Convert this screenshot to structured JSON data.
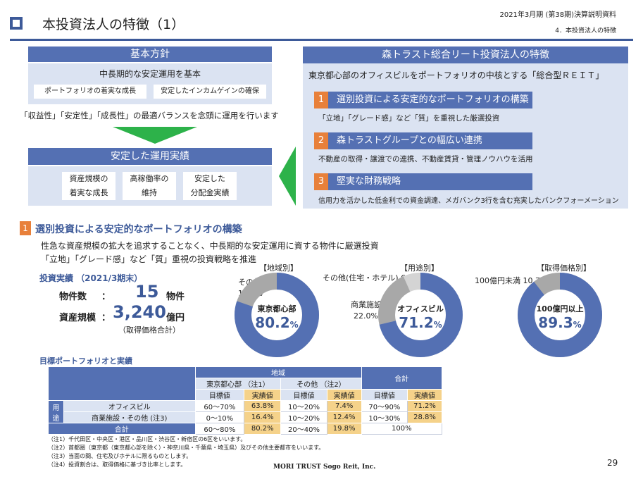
{
  "header": {
    "title": "本投資法人の特徴（1）",
    "fiscal": "2021年3月期 (第38期)決算説明資料",
    "section": "4．本投資法人の特徴"
  },
  "left_panel": {
    "head": "基本方針",
    "subtitle": "中長期的な安定運用を基本",
    "box1": "ポートフォリオの着実な成長",
    "box2": "安定したインカムゲインの確保",
    "balance_text": "「収益性」「安定性」「成長性」の最適バランスを念頭に運用を行います",
    "results_head": "安定した運用実績",
    "result1_line1": "資産規模の",
    "result1_line2": "着実な成長",
    "result2_line1": "高稼働率の",
    "result2_line2": "維持",
    "result3_line1": "安定した",
    "result3_line2": "分配金実績"
  },
  "right_panel": {
    "head": "森トラスト総合リート投資法人の特徴",
    "lead": "東京都心部のオフィスビルをポートフォリオの中核とする「総合型ＲＥＩＴ」",
    "features": [
      {
        "num": "1",
        "title": "選別投資による安定的なポートフォリオの構築",
        "desc": "「立地」「グレード感」など「質」を重視した厳選投資"
      },
      {
        "num": "2",
        "title": "森トラストグループとの幅広い連携",
        "desc": "不動産の取得・譲渡での連携、不動産賃貸・管理ノウハウを活用"
      },
      {
        "num": "3",
        "title": "堅実な財務戦略",
        "desc": "信用力を活かした低金利での資金調達、メガバンク3行を含む充実したバンクフォーメーション"
      }
    ]
  },
  "section1": {
    "num": "1",
    "heading": "選別投資による安定的なポートフォリオの構築",
    "line1": "性急な資産規模の拡大を追求することなく、中長期的な安定運用に資する物件に厳選投資",
    "line2": "「立地」「グレード感」など「質」重視の投資戦略を推進",
    "results_title": "投資実績 （2021/3期末）",
    "count_label": "物件数",
    "colon": "：",
    "count_value": "15",
    "count_unit": "物件",
    "scale_label": "資産規模",
    "scale_value": "3,240",
    "scale_unit": "億円",
    "scale_note": "（取得価格合計）"
  },
  "donuts": {
    "region": {
      "title": "【地域別】",
      "main_label": "東京都心部",
      "main_value": "80.2",
      "other_label": "その他",
      "other_value": "19.8%",
      "percent_sign": "%",
      "fraction": 0.802
    },
    "use": {
      "title": "【用途別】",
      "main_label": "オフィスビル",
      "main_value": "71.2",
      "other1_label": "その他(住宅・ホテル) 6.8%",
      "other2_label": "商業施設",
      "other2_value": "22.0%",
      "percent_sign": "%",
      "fraction_main": 0.712,
      "fraction_commercial": 0.22,
      "fraction_other": 0.068
    },
    "price": {
      "title": "【取得価格別】",
      "main_label": "100億円以上",
      "main_value": "89.3",
      "other_label": "100億円未満 10.7%",
      "percent_sign": "%",
      "fraction": 0.893
    },
    "colors": {
      "main": "#5470b3",
      "second": "#a8a8a8",
      "third": "#d4d4d4"
    }
  },
  "table": {
    "title": "目標ポートフォリオと実績",
    "region_head": "地域",
    "total_head": "合計",
    "tokyo_head": "東京都心部 （注1）",
    "other_head": "その他 （注2）",
    "target": "目標値",
    "actual": "実績値",
    "use_label": "用途",
    "rows": [
      {
        "label": "オフィスビル",
        "c1": "60～70%",
        "c2": "63.8%",
        "c3": "10～20%",
        "c4": "7.4%",
        "c5": "70～90%",
        "c6": "71.2%"
      },
      {
        "label": "商業施設・その他 (注3)",
        "c1": "0～10%",
        "c2": "16.4%",
        "c3": "10～20%",
        "c4": "12.4%",
        "c5": "10～30%",
        "c6": "28.8%"
      }
    ],
    "total_row": {
      "label": "合計",
      "c1": "60～80%",
      "c2": "80.2%",
      "c3": "20～40%",
      "c4": "19.8%",
      "c5": "100%"
    }
  },
  "notes": [
    "（注1）千代田区・中央区・港区・品川区・渋谷区・新宿区の6区をいいます。",
    "（注2）首都圏（東京都（東京都心部を除く）・神奈川県・千葉県・埼玉県）及びその他主要都市をいいます。",
    "（注3）当面の間、住宅及びホテルに限るものとします。",
    "（注4）投資割合は、取得価格に基づき比率とします。"
  ],
  "footer": {
    "company": "MORI TRUST Sogo Reit, Inc.",
    "page": "29"
  }
}
